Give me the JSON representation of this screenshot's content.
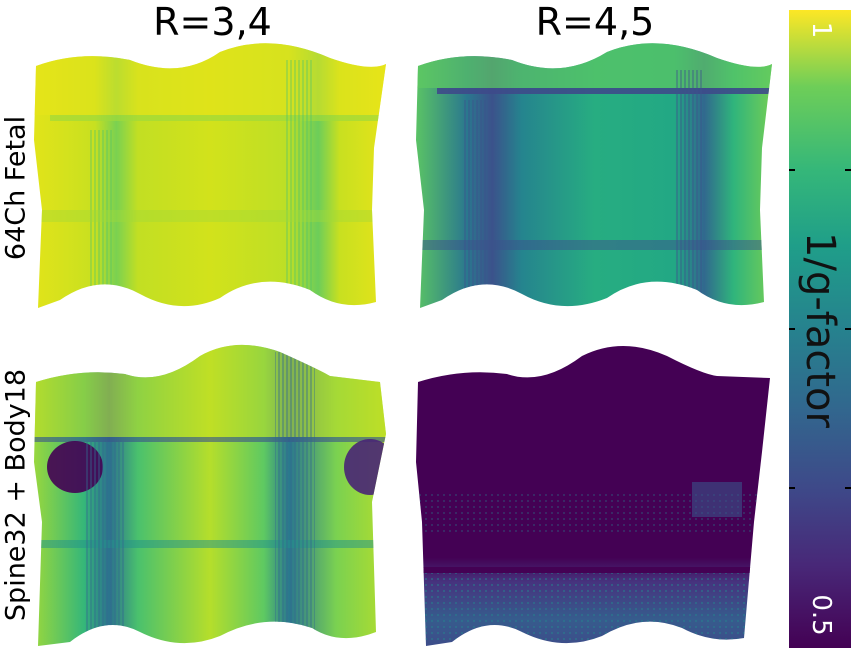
{
  "columns": [
    {
      "title": "R=3,4"
    },
    {
      "title": "R=4,5"
    }
  ],
  "rows": [
    {
      "label": "64Ch Fetal"
    },
    {
      "label": "Spine32 + Body18"
    }
  ],
  "colorbar": {
    "label": "1/g-factor",
    "max_label": "1",
    "min_label": "0.5",
    "max": 1,
    "min": 0.5,
    "colormap": "viridis",
    "colors": [
      "#440154",
      "#3b528b",
      "#21918c",
      "#5ec962",
      "#fde725"
    ]
  },
  "panels": [
    {
      "name": "fetal-r34",
      "mean_value": 0.93
    },
    {
      "name": "fetal-r45",
      "mean_value": 0.8
    },
    {
      "name": "spine-body-r34",
      "mean_value": 0.86
    },
    {
      "name": "spine-body-r45",
      "mean_value": 0.52
    }
  ]
}
